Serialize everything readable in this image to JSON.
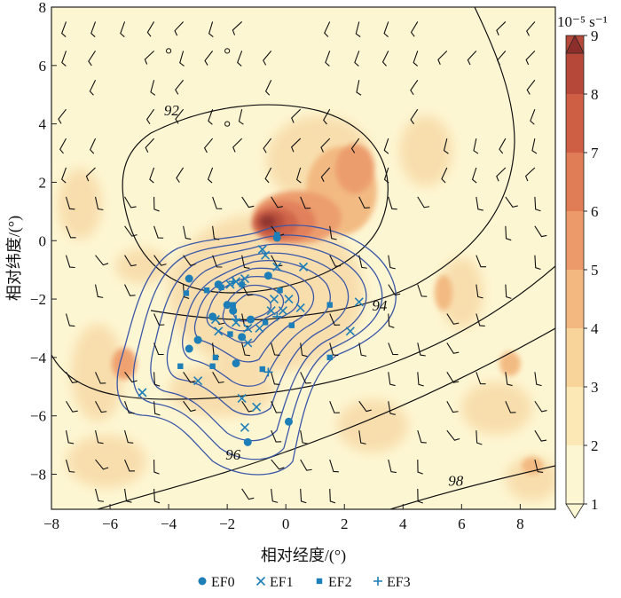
{
  "chart_data": {
    "type": "scatter",
    "xlabel": "相对经度/(°)",
    "ylabel": "相对纬度/(°)",
    "xlim": [
      -8,
      9.2
    ],
    "ylim": [
      -9.2,
      8
    ],
    "xticks": [
      -8,
      -6,
      -4,
      -2,
      0,
      2,
      4,
      6,
      8
    ],
    "yticks": [
      -8,
      -6,
      -4,
      -2,
      0,
      2,
      4,
      6,
      8
    ],
    "colorbar": {
      "label": "10⁻⁵ s⁻¹",
      "ticks": [
        1,
        2,
        3,
        4,
        5,
        6,
        7,
        8,
        9
      ],
      "colors": [
        "#fdf6d2",
        "#fbe8b4",
        "#f8d39a",
        "#f3b880",
        "#ec9a6a",
        "#e07c56",
        "#ce5f45",
        "#b54838",
        "#8c2f2c"
      ]
    },
    "contour_labels": [
      {
        "text": "92",
        "x": -3.9,
        "y": 4.3
      },
      {
        "text": "94",
        "x": 3.2,
        "y": -2.4
      },
      {
        "text": "96",
        "x": -1.8,
        "y": -7.5
      },
      {
        "text": "98",
        "x": 5.8,
        "y": -8.4
      }
    ],
    "series": [
      {
        "name": "EF0",
        "marker": "circle",
        "color": "#1e7fb8",
        "points": [
          [
            -0.3,
            0.1
          ],
          [
            -3.3,
            -1.3
          ],
          [
            -2.3,
            -1.5
          ],
          [
            -0.6,
            -1.2
          ],
          [
            -2.0,
            -2.2
          ],
          [
            -2.5,
            -2.6
          ],
          [
            -1.8,
            -2.4
          ],
          [
            -1.2,
            -2.7
          ],
          [
            -3.0,
            -3.4
          ],
          [
            -1.5,
            -3.3
          ],
          [
            -3.3,
            -3.7
          ],
          [
            -1.7,
            -4.2
          ],
          [
            0.1,
            -6.2
          ],
          [
            -1.3,
            -6.9
          ]
        ]
      },
      {
        "name": "EF1",
        "marker": "cross",
        "color": "#1e7fb8",
        "points": [
          [
            -0.8,
            -0.3
          ],
          [
            -0.7,
            -0.5
          ],
          [
            0.6,
            -0.9
          ],
          [
            -0.3,
            -0.9
          ],
          [
            -1.7,
            -1.4
          ],
          [
            -1.4,
            -1.3
          ],
          [
            -1.9,
            -1.5
          ],
          [
            -0.4,
            -2.0
          ],
          [
            0.1,
            -2.0
          ],
          [
            -0.5,
            -2.4
          ],
          [
            -0.1,
            -2.4
          ],
          [
            0.5,
            -2.3
          ],
          [
            2.5,
            -2.1
          ],
          [
            -2.4,
            -2.7
          ],
          [
            -1.7,
            -2.8
          ],
          [
            -2.3,
            -3.1
          ],
          [
            -1.3,
            -3.0
          ],
          [
            -0.9,
            -3.0
          ],
          [
            -1.3,
            -3.5
          ],
          [
            2.2,
            -3.1
          ],
          [
            -3.0,
            -4.8
          ],
          [
            -1.5,
            -5.4
          ],
          [
            -1.0,
            -5.7
          ],
          [
            -1.4,
            -6.4
          ],
          [
            -4.9,
            -5.2
          ]
        ]
      },
      {
        "name": "EF2",
        "marker": "square",
        "color": "#1e7fb8",
        "points": [
          [
            -0.3,
            0.2
          ],
          [
            -3.4,
            -1.8
          ],
          [
            -2.7,
            -1.7
          ],
          [
            -2.2,
            -1.6
          ],
          [
            -1.5,
            -1.5
          ],
          [
            -0.2,
            -1.7
          ],
          [
            -1.8,
            -2.2
          ],
          [
            1.5,
            -2.2
          ],
          [
            -0.7,
            -2.8
          ],
          [
            -1.9,
            -3.2
          ],
          [
            0.2,
            -2.9
          ],
          [
            -3.0,
            -3.4
          ],
          [
            -2.4,
            -4.0
          ],
          [
            -3.6,
            -4.3
          ],
          [
            -2.5,
            -4.3
          ],
          [
            -0.8,
            -4.4
          ],
          [
            1.5,
            -4.0
          ]
        ]
      },
      {
        "name": "EF3",
        "marker": "plus",
        "color": "#1e7fb8",
        "points": [
          [
            -1.8,
            -1.4
          ],
          [
            -1.5,
            -1.5
          ],
          [
            -0.3,
            -2.6
          ],
          [
            -0.6,
            -4.5
          ],
          [
            -1.7,
            -2.7
          ]
        ]
      }
    ]
  }
}
